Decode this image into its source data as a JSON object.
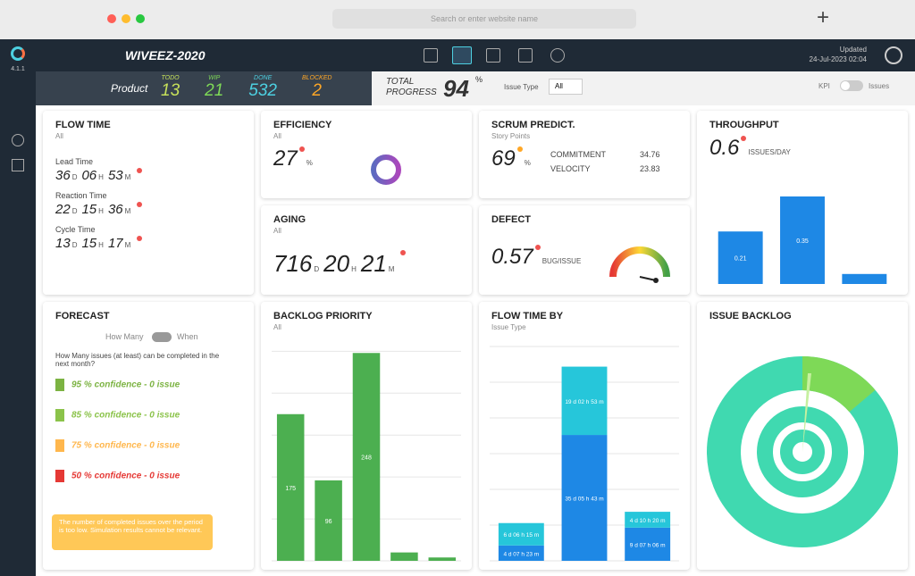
{
  "browser": {
    "address": "Search or enter website name"
  },
  "app": {
    "version": "4.1.1",
    "title": "WIVEEZ-2020",
    "updated_label": "Updated",
    "updated_at": "24-Jul-2023 02:04"
  },
  "status": {
    "product": "Product",
    "counts": [
      {
        "label": "TODO",
        "value": 13,
        "color": "#c6e05a"
      },
      {
        "label": "WIP",
        "value": 21,
        "color": "#7ed957"
      },
      {
        "label": "DONE",
        "value": 532,
        "color": "#4dd0e1"
      },
      {
        "label": "BLOCKED",
        "value": 2,
        "color": "#ffa726"
      }
    ],
    "total_label": "TOTAL PROGRESS",
    "total_value": 94,
    "total_unit": "%",
    "issue_type_label": "Issue Type",
    "issue_type": "All",
    "kpi": "KPI",
    "issues": "Issues"
  },
  "flow_time": {
    "title": "FLOW TIME",
    "filter": "All",
    "rows": [
      {
        "label": "Lead Time",
        "parts": [
          {
            "value": "36",
            "unit": "D"
          },
          {
            "value": "06",
            "unit": "H"
          },
          {
            "value": "53",
            "unit": "M"
          }
        ]
      },
      {
        "label": "Reaction Time",
        "parts": [
          {
            "value": "22",
            "unit": "D"
          },
          {
            "value": "15",
            "unit": "H"
          },
          {
            "value": "36",
            "unit": "M"
          }
        ]
      },
      {
        "label": "Cycle Time",
        "parts": [
          {
            "value": "13",
            "unit": "D"
          },
          {
            "value": "15",
            "unit": "H"
          },
          {
            "value": "17",
            "unit": "M"
          }
        ]
      }
    ]
  },
  "efficiency": {
    "title": "EFFICIENCY",
    "filter": "All",
    "value": 27,
    "unit": "%"
  },
  "scrum": {
    "title": "SCRUM PREDICT.",
    "subtitle": "Story Points",
    "value": 69,
    "unit": "%",
    "commitment_label": "COMMITMENT",
    "commitment": 34.76,
    "velocity_label": "VELOCITY",
    "velocity": 23.83
  },
  "throughput": {
    "title": "THROUGHPUT",
    "value": 0.6,
    "unit": "ISSUES/DAY",
    "values": [
      0.21,
      0.35,
      0.04
    ],
    "color": "#1e88e5",
    "ylim": [
      0,
      0.4
    ]
  },
  "aging": {
    "title": "AGING",
    "filter": "All",
    "parts": [
      {
        "value": "716",
        "unit": "D"
      },
      {
        "value": "20",
        "unit": "H"
      },
      {
        "value": "21",
        "unit": "M"
      }
    ]
  },
  "defect": {
    "title": "DEFECT",
    "value": 0.57,
    "unit": "BUG/ISSUE"
  },
  "forecast": {
    "title": "FORECAST",
    "mode_a": "How Many",
    "mode_b": "When",
    "question": "How Many issues (at least) can be completed in the next month?",
    "lines": [
      {
        "text": "95 % confidence - 0 issue",
        "color": "#7cb342"
      },
      {
        "text": "85 % confidence - 0 issue",
        "color": "#8bc34a"
      },
      {
        "text": "75 % confidence - 0 issue",
        "color": "#ffb74d"
      },
      {
        "text": "50 % confidence - 0 issue",
        "color": "#e53935"
      }
    ],
    "note": "The number of completed issues over the period is too low. Simulation results cannot be relevant."
  },
  "backlog_priority": {
    "title": "BACKLOG PRIORITY",
    "filter": "All",
    "values": [
      175,
      96,
      248,
      10,
      4
    ],
    "color": "#4caf50",
    "ylim": [
      0,
      260
    ],
    "yticks": [
      0,
      50,
      100,
      150,
      200,
      250
    ]
  },
  "flow_time_by": {
    "title": "FLOW TIME BY",
    "filter": "Issue Type",
    "ylim": [
      0,
      60
    ],
    "yticks": [
      0,
      10,
      20,
      30,
      40,
      50,
      60
    ],
    "series": [
      {
        "color": "#1e88e5",
        "values": [
          4.3076,
          35.2382,
          9.2958
        ],
        "value_labels": [
          "4 d 07 h 23 m",
          "35 d 05 h 43 m",
          "9 d 07 h 06 m"
        ]
      },
      {
        "color": "#26c6da",
        "values": [
          6.2604,
          19.1201,
          4.4306
        ],
        "value_labels": [
          "6 d 06 h 15 m",
          "19 d 02 h 53 m",
          "4 d 10 h 20 m"
        ]
      }
    ]
  },
  "issue_backlog": {
    "title": "ISSUE BACKLOG"
  }
}
